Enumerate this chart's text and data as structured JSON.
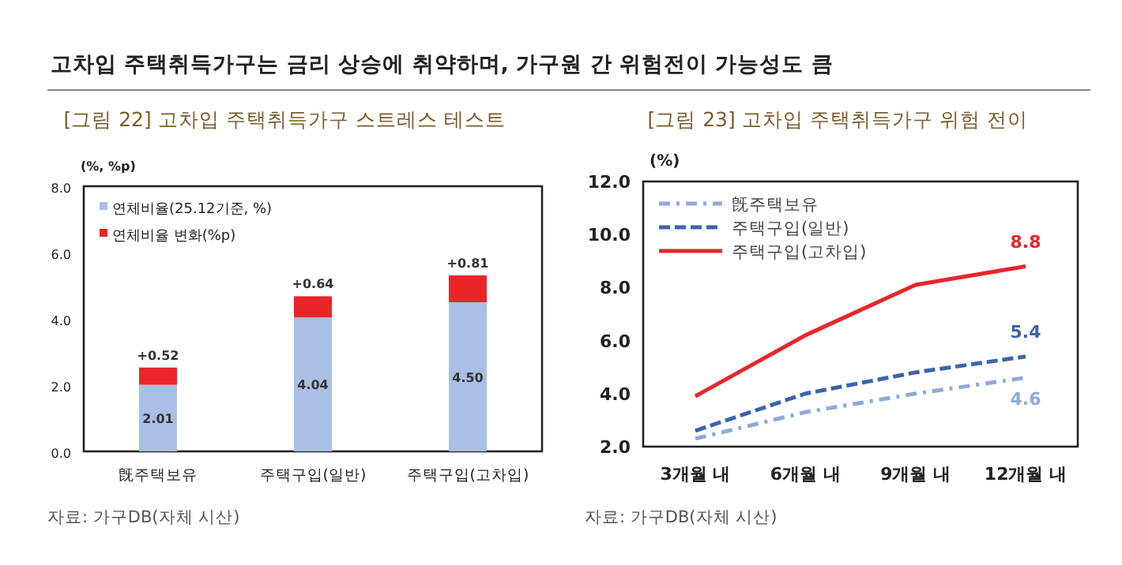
{
  "chart_data": [
    {
      "type": "other",
      "title": "고차입 주택취득가구는 금리 상승에 취약하며, 가구원 간 위험전이 가능성도 큼"
    },
    {
      "type": "bar",
      "title": "[그림 22]  고차입 주택취득가구 스트레스 테스트",
      "ylabel": "(%, %p)",
      "stacked": true,
      "legend": "top left",
      "categories": [
        "旣주택보유",
        "주택구입(일반)",
        "주택구입(고차입)"
      ],
      "series": [
        {
          "name": "연체비율(25.12기준, %)",
          "color": "#a9bfe3",
          "values": [
            2.01,
            4.04,
            4.5
          ],
          "value_labels": [
            "2.01",
            "4.04",
            "4.50"
          ]
        },
        {
          "name": "연체비율 변화(%p)",
          "color": "#e8262a",
          "values": [
            0.52,
            0.64,
            0.81
          ],
          "value_labels": [
            "+0.52",
            "+0.64",
            "+0.81"
          ]
        }
      ],
      "ylim": [
        0,
        8
      ],
      "yticks": [
        {
          "value": 0,
          "label": "0.0"
        },
        {
          "value": 2,
          "label": "2.0"
        },
        {
          "value": 4,
          "label": "4.0"
        },
        {
          "value": 6,
          "label": "6.0"
        },
        {
          "value": 8,
          "label": "8.0"
        }
      ],
      "annotations": [
        "자료: 가구DB(자체 시산)"
      ]
    },
    {
      "type": "line",
      "title": "[그림 23] 고차입 주택취득가구 위험 전이",
      "ylabel": "(%)",
      "legend": "top left",
      "categories": [
        "3개월 내",
        "6개월 내",
        "9개월 내",
        "12개월 내"
      ],
      "series": [
        {
          "name": "旣주택보유",
          "color": "#8eaadb",
          "line_style": "dashdot",
          "values": [
            2.3,
            3.3,
            4.0,
            4.6
          ],
          "value_labels": [
            null,
            null,
            null,
            "4.6"
          ]
        },
        {
          "name": "주택구입(일반)",
          "color": "#3d62ad",
          "line_style": "dashed",
          "values": [
            2.6,
            4.0,
            4.8,
            5.4
          ],
          "value_labels": [
            null,
            null,
            null,
            "5.4"
          ]
        },
        {
          "name": "주택구입(고차입)",
          "color": "#e8262a",
          "line_style": "solid",
          "values": [
            3.9,
            6.2,
            8.1,
            8.8
          ],
          "value_labels": [
            null,
            null,
            null,
            "8.8"
          ]
        }
      ],
      "ylim": [
        2,
        12
      ],
      "yticks": [
        {
          "value": 2,
          "label": "2.0"
        },
        {
          "value": 4,
          "label": "4.0"
        },
        {
          "value": 6,
          "label": "6.0"
        },
        {
          "value": 8,
          "label": "8.0"
        },
        {
          "value": 10,
          "label": "10.0"
        },
        {
          "value": 12,
          "label": "12.0"
        }
      ],
      "annotations": [
        "자료: 가구DB(자체 시산)"
      ]
    }
  ]
}
